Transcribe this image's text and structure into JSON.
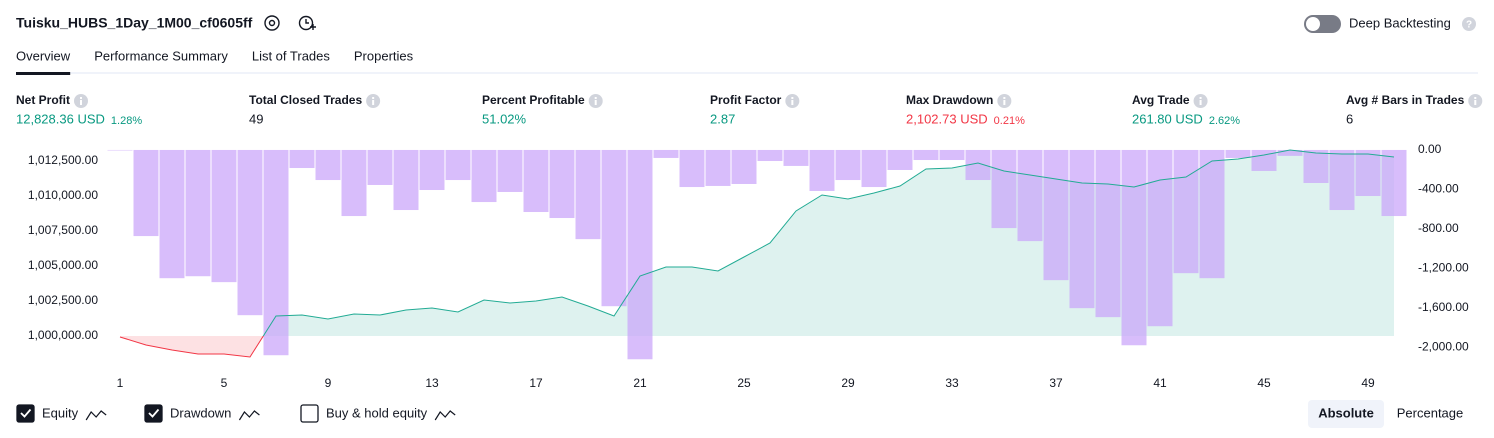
{
  "header": {
    "title": "Tuisku_HUBS_1Day_1M00_cf0605ff",
    "deep_backtesting": "Deep Backtesting",
    "deep_backtesting_on": false
  },
  "tabs": [
    "Overview",
    "Performance Summary",
    "List of Trades",
    "Properties"
  ],
  "active_tab": 0,
  "metrics": [
    {
      "label": "Net Profit",
      "value": "12,828.36 USD",
      "percent": "1.28%",
      "color": "#089981"
    },
    {
      "label": "Total Closed Trades",
      "value": "49",
      "color": "#131722"
    },
    {
      "label": "Percent Profitable",
      "value": "51.02%",
      "color": "#089981"
    },
    {
      "label": "Profit Factor",
      "value": "2.87",
      "color": "#089981"
    },
    {
      "label": "Max Drawdown",
      "value": "2,102.73 USD",
      "percent": "0.21%",
      "color": "#f23645"
    },
    {
      "label": "Avg Trade",
      "value": "261.80 USD",
      "percent": "2.62%",
      "color": "#089981"
    },
    {
      "label": "Avg # Bars in Trades",
      "value": "6",
      "color": "#131722"
    }
  ],
  "chart_data": {
    "type": "equity",
    "x": [
      1,
      2,
      3,
      4,
      5,
      6,
      7,
      8,
      9,
      10,
      11,
      12,
      13,
      14,
      15,
      16,
      17,
      18,
      19,
      20,
      21,
      22,
      23,
      24,
      25,
      26,
      27,
      28,
      29,
      30,
      31,
      32,
      33,
      34,
      35,
      36,
      37,
      38,
      39,
      40,
      41,
      42,
      43,
      44,
      45,
      46,
      47,
      48,
      49,
      50
    ],
    "xlim": [
      0.5,
      50.5
    ],
    "xticks": [
      1,
      5,
      9,
      13,
      17,
      21,
      25,
      29,
      33,
      37,
      41,
      45,
      49
    ],
    "ylim": [
      998000,
      1013500
    ],
    "yticks": [
      {
        "value": 1000000,
        "label": "1,000,000.00"
      },
      {
        "value": 1002500,
        "label": "1,002,500.00"
      },
      {
        "value": 1005000,
        "label": "1,005,000.00"
      },
      {
        "value": 1007500,
        "label": "1,007,500.00"
      },
      {
        "value": 1010000,
        "label": "1,010,000.00"
      },
      {
        "value": 1012500,
        "label": "1,012,500.00"
      }
    ],
    "y2lim": [
      -2170,
      30
    ],
    "y2ticks": [
      {
        "value": 0,
        "label": "0.00"
      },
      {
        "value": -400,
        "label": "-400.00"
      },
      {
        "value": -800,
        "label": "-800.00"
      },
      {
        "value": -1200,
        "label": "-1,200.00"
      },
      {
        "value": -1600,
        "label": "-1,600.00"
      },
      {
        "value": -2000,
        "label": "-2,000.00"
      }
    ],
    "series": [
      {
        "name": "Equity",
        "color": "#22ab94",
        "negative_color": "#f23645",
        "axis": "y",
        "checked": true,
        "values": [
          999930,
          999357,
          999000,
          998714,
          998714,
          998500,
          1001428,
          1001500,
          1001214,
          1001571,
          1001500,
          1001857,
          1002000,
          1001714,
          1002571,
          1002357,
          1002500,
          1002786,
          1002143,
          1001428,
          1004286,
          1004929,
          1004929,
          1004643,
          1005643,
          1006643,
          1008929,
          1010071,
          1009786,
          1010214,
          1010714,
          1011929,
          1012000,
          1012357,
          1011786,
          1011500,
          1011214,
          1010929,
          1010857,
          1010643,
          1011143,
          1011357,
          1012500,
          1012643,
          1012929,
          1013286,
          1013071,
          1013000,
          1013000,
          1012786
        ]
      },
      {
        "name": "Drawdown",
        "color": "#c9a3fa",
        "axis": "y2",
        "checked": true,
        "values": [
          -5,
          -873,
          -1300,
          -1280,
          -1340,
          -1675,
          -2081,
          -183,
          -305,
          -670,
          -355,
          -609,
          -406,
          -305,
          -528,
          -426,
          -629,
          -690,
          -904,
          -1584,
          -2122,
          -81,
          -376,
          -365,
          -345,
          -112,
          -162,
          -416,
          -305,
          -376,
          -203,
          -102,
          -102,
          -305,
          -792,
          -924,
          -1320,
          -1604,
          -1695,
          -1980,
          -1787,
          -1249,
          -1300,
          -81,
          -213,
          -60,
          -335,
          -609,
          -467,
          -670
        ]
      }
    ],
    "buy_hold": {
      "name": "Buy & hold equity",
      "checked": false
    }
  },
  "modes": [
    "Absolute",
    "Percentage"
  ],
  "active_mode": 0
}
